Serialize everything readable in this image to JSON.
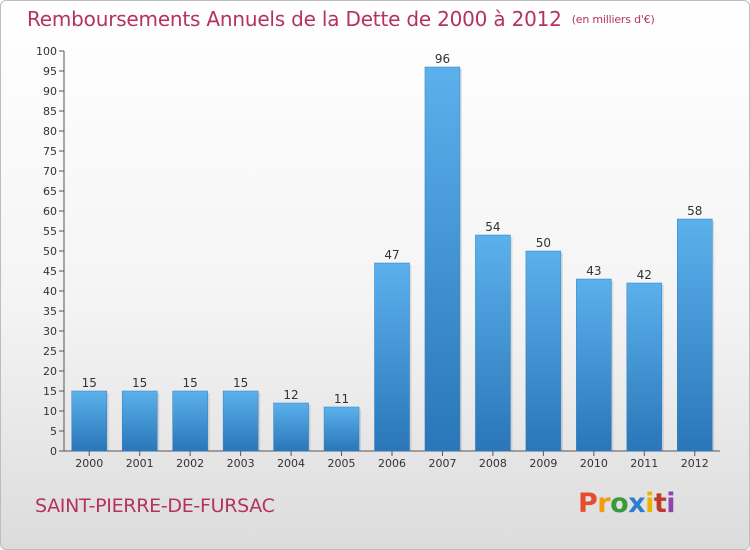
{
  "header": {
    "title": "Remboursements Annuels de la Dette de 2000 à 2012",
    "unit": "(en milliers d'€)"
  },
  "footer": {
    "commune": "SAINT-PIERRE-DE-FURSAC",
    "logo_text": "Proxiti",
    "logo_colors": [
      "#e74c2c",
      "#f39c12",
      "#3a9a3a",
      "#2b7fd0",
      "#e8b400",
      "#c0392b",
      "#8e44ad"
    ]
  },
  "colors": {
    "bar": "#3f93d8",
    "bar_light": "#5bb1ec",
    "bar_dark": "#2a76b8",
    "axis": "#555555",
    "grid": "#d8d8d8"
  },
  "chart_data": {
    "type": "bar",
    "categories": [
      "2000",
      "2001",
      "2002",
      "2003",
      "2004",
      "2005",
      "2006",
      "2007",
      "2008",
      "2009",
      "2010",
      "2011",
      "2012"
    ],
    "values": [
      15,
      15,
      15,
      15,
      12,
      11,
      47,
      96,
      54,
      50,
      43,
      42,
      58
    ],
    "title": "Remboursements Annuels de la Dette de 2000 à 2012",
    "xlabel": "",
    "ylabel": "",
    "ylim": [
      0,
      100
    ],
    "ytick_step": 5,
    "grid": false,
    "data_labels": true
  }
}
